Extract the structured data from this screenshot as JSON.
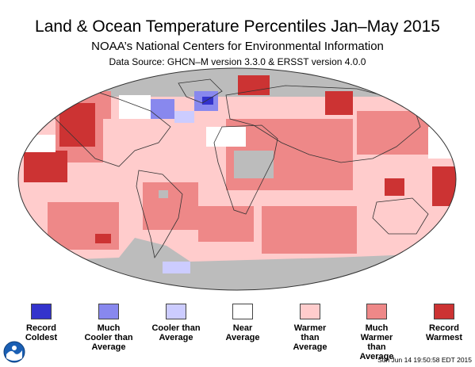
{
  "title": "Land & Ocean Temperature Percentiles Jan–May 2015",
  "subtitle": "NOAA’s National Centers for Environmental Information",
  "source": "Data Source: GHCN–M version 3.3.0 & ERSST version 4.0.0",
  "legend": [
    {
      "label": "Record\nColdest",
      "color": "#3333cc"
    },
    {
      "label": "Much\nCooler than\nAverage",
      "color": "#8888ee"
    },
    {
      "label": "Cooler than\nAverage",
      "color": "#ccccff"
    },
    {
      "label": "Near\nAverage",
      "color": "#ffffff"
    },
    {
      "label": "Warmer than\nAverage",
      "color": "#ffcccc"
    },
    {
      "label": "Much\nWarmer than\nAverage",
      "color": "#ee8888"
    },
    {
      "label": "Record\nWarmest",
      "color": "#cc3333"
    }
  ],
  "timestamp": "Sun Jun 14 19:50:58 EDT 2015",
  "colors": {
    "missing": "#bcbcbc",
    "land_outline": "#333333"
  }
}
